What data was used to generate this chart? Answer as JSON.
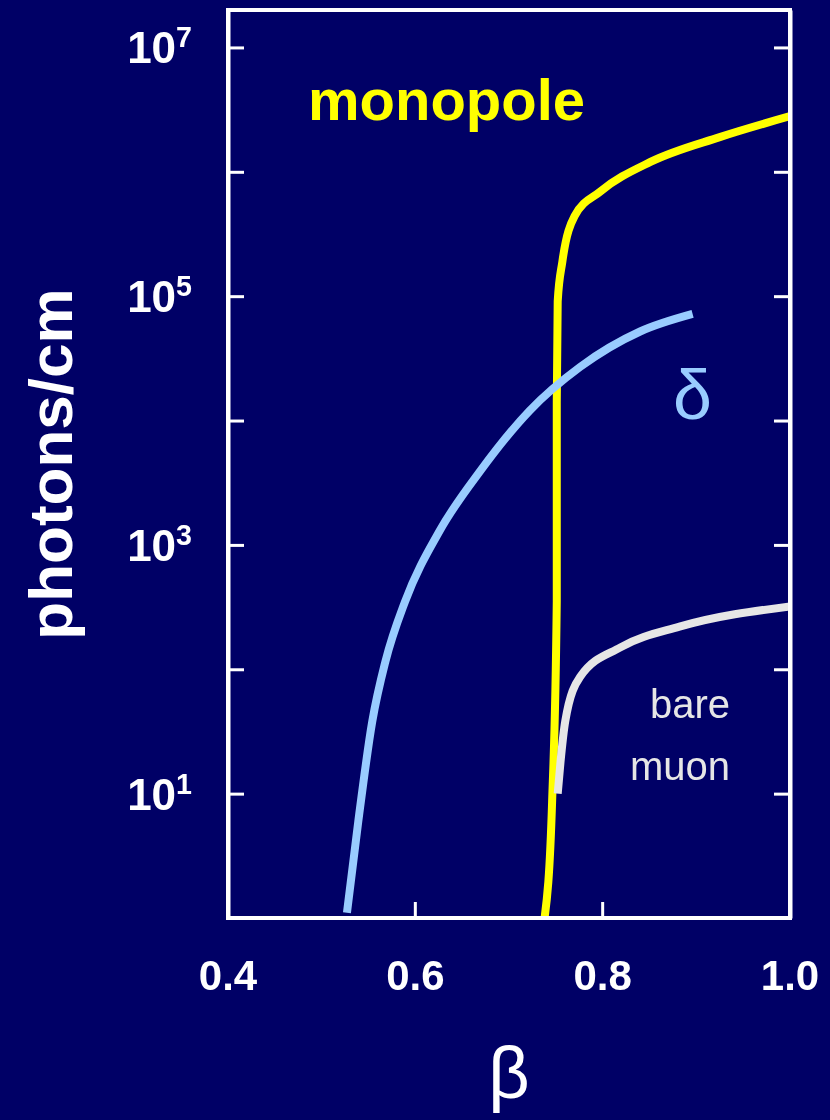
{
  "chart_data": {
    "type": "line",
    "xlabel": "β",
    "ylabel": "photons/cm",
    "log": "y",
    "xlim": [
      0.4,
      1.0
    ],
    "xticks": [
      {
        "value": 0.4,
        "label": "0.4"
      },
      {
        "value": 0.6,
        "label": "0.6"
      },
      {
        "value": 0.8,
        "label": "0.8"
      },
      {
        "value": 1.0,
        "label": "1.0"
      }
    ],
    "ylim": [
      1,
      20000000
    ],
    "yticks": [
      {
        "value": 10,
        "label": "10$^{1}$"
      },
      {
        "value": 100,
        "label": null
      },
      {
        "value": 1000,
        "label": "10$^{3}$"
      },
      {
        "value": 10000,
        "label": null
      },
      {
        "value": 100000,
        "label": "10$^{5}$"
      },
      {
        "value": 1000000,
        "label": null
      },
      {
        "value": 10000000,
        "label": "10$^{7}$"
      }
    ],
    "grid": false,
    "marker": "none",
    "line_style": "solid",
    "series": [
      {
        "name": "monopole",
        "color": "#ffff00",
        "x": [
          0.738,
          0.746,
          0.751,
          0.751,
          0.752,
          0.757,
          0.77,
          0.797,
          0.851,
          0.925,
          1.0
        ],
        "values": [
          1,
          8.5,
          350,
          14000,
          91000,
          190000,
          440000,
          690000,
          1200000,
          1900000,
          2800000
        ]
      },
      {
        "name": "δ",
        "color": "#99ccff",
        "x": [
          0.527,
          0.539,
          0.554,
          0.568,
          0.589,
          0.626,
          0.669,
          0.722,
          0.776,
          0.84,
          0.896
        ],
        "values": [
          1.1,
          5.9,
          38,
          115,
          350,
          1300,
          3900,
          12000,
          27000,
          52000,
          72000
        ]
      },
      {
        "name": "bare muon",
        "color": "#e6e6e6",
        "x": [
          0.752,
          0.755,
          0.76,
          0.776,
          0.819,
          0.882,
          1.0
        ],
        "values": [
          10,
          18,
          38,
          87,
          150,
          220,
          320
        ]
      }
    ]
  }
}
